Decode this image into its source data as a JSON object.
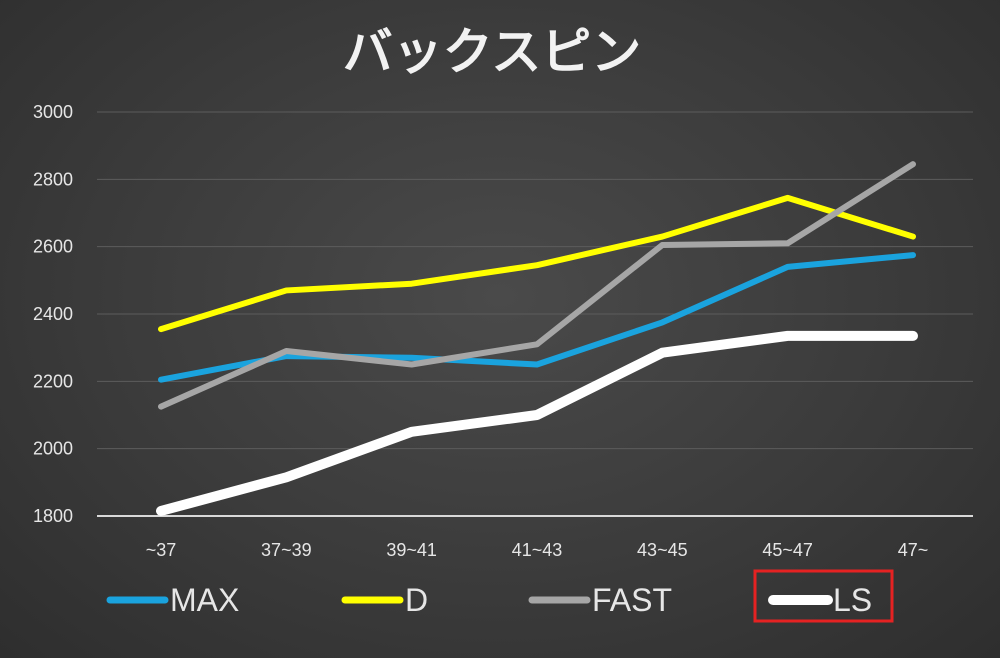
{
  "chart_data": {
    "type": "line",
    "title": "バックスピン",
    "xlabel": "",
    "ylabel": "",
    "categories": [
      "~37",
      "37~39",
      "39~41",
      "41~43",
      "43~45",
      "45~47",
      "47~"
    ],
    "ylim": [
      1800,
      3000
    ],
    "yticks": [
      1800,
      2000,
      2200,
      2400,
      2600,
      2800,
      3000
    ],
    "grid": true,
    "legend_position": "bottom",
    "highlighted_series": "LS",
    "series": [
      {
        "name": "MAX",
        "color": "#1aa3de",
        "values": [
          2205,
          2275,
          2270,
          2250,
          2375,
          2540,
          2575
        ]
      },
      {
        "name": "D",
        "color": "#ffff00",
        "values": [
          2355,
          2470,
          2490,
          2545,
          2630,
          2745,
          2630
        ]
      },
      {
        "name": "FAST",
        "color": "#a6a6a6",
        "values": [
          2125,
          2290,
          2250,
          2310,
          2605,
          2610,
          2845
        ]
      },
      {
        "name": "LS",
        "color": "#ffffff",
        "values": [
          1815,
          1915,
          2050,
          2100,
          2285,
          2335,
          2335
        ]
      }
    ]
  },
  "legend_highlight_color": "#e52222"
}
